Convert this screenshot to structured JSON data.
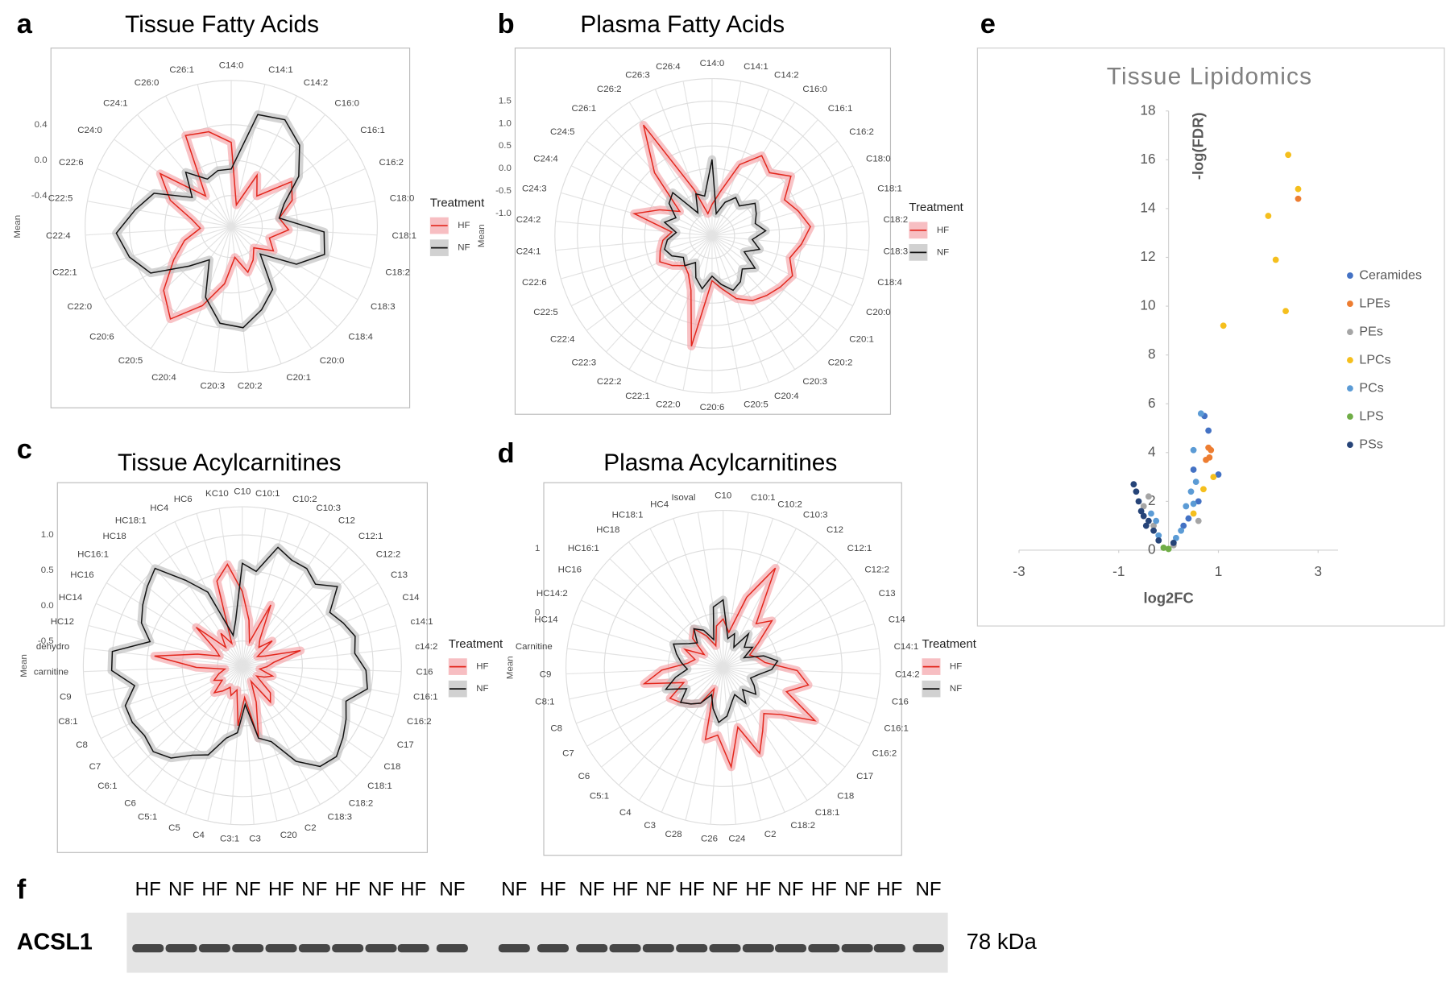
{
  "panel_labels": [
    "a",
    "b",
    "c",
    "d",
    "e",
    "f"
  ],
  "chart_data": [
    {
      "type": "radar",
      "title": "Tissue Fatty Acids",
      "y_label": "Mean",
      "legend_title": "Treatment",
      "categories": [
        "C14:0",
        "C14:1",
        "C14:2",
        "C16:0",
        "C16:1",
        "C16:2",
        "C18:0",
        "C18:1",
        "C18:2",
        "C18:3",
        "C18:4",
        "C20:0",
        "C20:1",
        "C20:2",
        "C20:3",
        "C20:4",
        "C20:5",
        "C20:6",
        "C22:0",
        "C22:1",
        "C22:4",
        "C22:5",
        "C22:6",
        "C24:0",
        "C24:1",
        "C26:0",
        "C26:1"
      ],
      "series": [
        {
          "name": "HF",
          "color": "#e3261c",
          "ribbon_color": "#f4a3a8",
          "values": [
            0.2,
            -0.5,
            -0.1,
            -0.3,
            0.1,
            0.0,
            -0.2,
            -0.1,
            -0.3,
            -0.2,
            -0.4,
            -0.3,
            -0.2,
            -0.4,
            -0.1,
            0.2,
            0.5,
            0.3,
            0.0,
            -0.2,
            -0.4,
            -0.3,
            0.0,
            0.25,
            -0.3,
            0.4,
            0.35
          ]
        },
        {
          "name": "NF",
          "color": "#111111",
          "ribbon_color": "#bdbdbd",
          "values": [
            -0.1,
            0.55,
            0.6,
            0.45,
            0.2,
            -0.1,
            -0.2,
            0.3,
            0.35,
            0.1,
            -0.3,
            0.1,
            0.25,
            0.4,
            0.35,
            0.1,
            -0.3,
            -0.1,
            0.3,
            0.45,
            0.55,
            0.35,
            0.2,
            -0.2,
            0.05,
            -0.15,
            -0.1
          ]
        }
      ],
      "ylim": [
        -0.75,
        0.9
      ],
      "yticks": [
        0.4,
        {
          "value": 0,
          "label": "0.0"
        },
        -0.4
      ],
      "grid": true
    },
    {
      "type": "radar",
      "title": "Plasma Fatty Acids",
      "y_label": "Mean",
      "legend_title": "Treatment",
      "categories": [
        "C14:0",
        "C14:1",
        "C14:2",
        "C16:0",
        "C16:1",
        "C16:2",
        "C18:0",
        "C18:1",
        "C18:2",
        "C18:3",
        "C18:4",
        "C20:0",
        "C20:1",
        "C20:2",
        "C20:3",
        "C20:4",
        "C20:5",
        "C20:6",
        "C22:0",
        "C22:1",
        "C22:2",
        "C22:3",
        "C22:4",
        "C22:5",
        "C22:6",
        "C24:1",
        "C24:2",
        "C24:3",
        "C24:4",
        "C24:5",
        "C26:1",
        "C26:2",
        "C26:3",
        "C26:4"
      ],
      "series": [
        {
          "name": "HF",
          "color": "#e3261c",
          "ribbon_color": "#f4a3a8",
          "values": [
            -0.8,
            -0.5,
            0.2,
            0.6,
            0.4,
            0.7,
            0.3,
            0.5,
            0.7,
            0.5,
            0.3,
            0.5,
            0.4,
            0.3,
            0.2,
            0.0,
            -0.3,
            -0.5,
            1.0,
            -0.2,
            -0.5,
            -0.6,
            -0.4,
            -0.2,
            -0.3,
            -0.4,
            -0.6,
            0.3,
            -0.2,
            -0.6,
            0.4,
            1.4,
            -0.4,
            -1.0
          ]
        },
        {
          "name": "NF",
          "color": "#111111",
          "ribbon_color": "#bdbdbd",
          "values": [
            0.2,
            -1.0,
            -0.7,
            -0.5,
            -0.6,
            -0.3,
            -0.4,
            -0.5,
            -0.3,
            -0.6,
            -0.4,
            -0.7,
            -0.3,
            -0.5,
            -0.3,
            -0.2,
            -0.4,
            -0.6,
            -0.3,
            -0.5,
            -0.8,
            -0.6,
            -0.7,
            -0.5,
            -0.4,
            -0.5,
            -0.7,
            -0.4,
            -0.6,
            -0.3,
            -0.2,
            -0.9,
            -0.5,
            -0.6
          ]
        }
      ],
      "ylim": [
        -1.5,
        2.0
      ],
      "yticks": [
        1.5,
        {
          "value": 1,
          "label": "1.0"
        },
        0.5,
        {
          "value": 0,
          "label": "0.0"
        },
        -0.5,
        {
          "value": -1,
          "label": "-1.0"
        }
      ],
      "grid": true
    },
    {
      "type": "radar",
      "title": "Tissue Acylcarnitines",
      "y_label": "Mean",
      "legend_title": "Treatment",
      "categories": [
        "C10",
        "C10:1",
        "C10:2",
        "C10:3",
        "C12",
        "C12:1",
        "C12:2",
        "C13",
        "C14",
        "c14:1",
        "c14:2",
        "C16",
        "C16:1",
        "C16:2",
        "C17",
        "C18",
        "C18:1",
        "C18:2",
        "C18:3",
        "C2",
        "C20",
        "C3",
        "C3:1",
        "C4",
        "C5",
        "C5:1",
        "C6",
        "C6:1",
        "C7",
        "C8",
        "C8:1",
        "C9",
        "carnitine",
        "dehydro",
        "HC12",
        "HC14",
        "HC16",
        "HC16:1",
        "HC18",
        "HC18:1",
        "HC4",
        "HC6",
        "KC10"
      ],
      "series": [
        {
          "name": "HF",
          "color": "#e3261c",
          "ribbon_color": "#f4a3a8",
          "values": [
            0.2,
            -0.2,
            -0.5,
            0.1,
            -0.4,
            -0.5,
            -0.3,
            -0.6,
            -0.5,
            0.0,
            -0.4,
            -0.5,
            -0.6,
            -0.4,
            -0.5,
            -0.6,
            -0.3,
            -0.2,
            -0.6,
            -0.3,
            0.2,
            -0.4,
            0.0,
            -0.5,
            -0.4,
            -0.5,
            -0.4,
            -0.3,
            -0.5,
            -0.4,
            -0.5,
            -0.6,
            -0.2,
            0.4,
            -0.2,
            -0.5,
            -0.4,
            0.0,
            -0.5,
            -0.3,
            -0.5,
            0.4,
            0.6
          ]
        },
        {
          "name": "NF",
          "color": "#111111",
          "ribbon_color": "#bdbdbd",
          "values": [
            0.6,
            0.5,
            0.9,
            0.8,
            0.8,
            0.7,
            0.9,
            0.6,
            0.7,
            0.8,
            0.75,
            0.9,
            0.95,
            0.7,
            0.8,
            0.9,
            1.0,
            0.95,
            0.7,
            0.3,
            0.2,
            -0.3,
            0.1,
            0.2,
            0.5,
            0.6,
            0.8,
            0.9,
            0.85,
            0.9,
            0.9,
            0.7,
            1.0,
            1.0,
            0.5,
            0.7,
            0.8,
            0.9,
            1.0,
            0.6,
            0.3,
            -0.4,
            -0.2
          ]
        }
      ],
      "ylim": [
        -0.85,
        1.4
      ],
      "yticks": [
        {
          "value": 1,
          "label": "1.0"
        },
        0.5,
        {
          "value": 0,
          "label": "0.0"
        },
        -0.5
      ],
      "grid": true
    },
    {
      "type": "radar",
      "title": "Plasma Acylcarnitines",
      "y_label": "Mean",
      "legend_title": "Treatment",
      "categories": [
        "C10",
        "C10:1",
        "C10:2",
        "C10:3",
        "C12",
        "C12:1",
        "C12:2",
        "C13",
        "C14",
        "C14:1",
        "C14:2",
        "C16",
        "C16:1",
        "C16:2",
        "C17",
        "C18",
        "C18:1",
        "C18:2",
        "C2",
        "C24",
        "C26",
        "C28",
        "C3",
        "C4",
        "C5:1",
        "C6",
        "C7",
        "C8",
        "C8:1",
        "C9",
        "Carnitine",
        "HC14",
        "HC14:2",
        "HC16",
        "HC16:1",
        "HC18",
        "HC18:1",
        "HC4",
        "Isoval"
      ],
      "series": [
        {
          "name": "HF",
          "color": "#e3261c",
          "ribbon_color": "#f4a3a8",
          "values": [
            -0.1,
            -0.3,
            0.3,
            0.9,
            0.0,
            0.2,
            -0.2,
            -0.4,
            -0.3,
            -0.2,
            0.3,
            0.5,
            0.2,
            0.8,
            0.3,
            0.1,
            0.3,
            0.6,
            0.1,
            0.7,
            0.2,
            0.3,
            -0.5,
            -0.2,
            -0.1,
            0.0,
            0.1,
            -0.2,
            0.4,
            0.1,
            -0.3,
            -0.4,
            -0.2,
            -0.5,
            -0.2,
            -0.1,
            -0.3,
            -0.5,
            -0.2
          ]
        },
        {
          "name": "NF",
          "color": "#111111",
          "ribbon_color": "#bdbdbd",
          "values": [
            0.2,
            -0.4,
            -0.3,
            -0.5,
            -0.2,
            -0.4,
            -0.3,
            -0.5,
            -0.2,
            0.0,
            -0.1,
            -0.3,
            -0.4,
            -0.3,
            -0.2,
            -0.4,
            -0.2,
            -0.4,
            -0.3,
            -0.1,
            0.0,
            -0.2,
            -0.4,
            -0.2,
            -0.1,
            0.0,
            -0.2,
            0.1,
            -0.1,
            -0.3,
            -0.2,
            -0.1,
            0.0,
            -0.2,
            -0.3,
            -0.1,
            -0.2,
            -0.4,
            0.1
          ]
        }
      ],
      "ylim": [
        -0.86,
        1.6
      ],
      "yticks": [
        1,
        0
      ],
      "grid": true
    },
    {
      "type": "scatter",
      "title": "Tissue Lipidomics",
      "x_label": "log2FC",
      "y_label": "-log(FDR)",
      "series": [
        {
          "name": "Ceramides",
          "color": "#4472c4",
          "x": [
            0.8,
            0.72,
            1.0,
            0.5,
            0.6,
            0.3,
            0.4
          ],
          "values": [
            4.9,
            5.5,
            3.1,
            3.3,
            2.0,
            1.0,
            1.3
          ]
        },
        {
          "name": "LPEs",
          "color": "#ed7d31",
          "x": [
            2.6,
            0.8,
            0.75,
            0.85,
            0.82
          ],
          "values": [
            14.4,
            4.2,
            3.7,
            4.1,
            3.8
          ]
        },
        {
          "name": "PEs",
          "color": "#a5a5a5",
          "x": [
            -0.4,
            -0.5,
            0.6,
            -0.3,
            0.1
          ],
          "values": [
            2.2,
            1.8,
            1.2,
            1.0,
            0.2
          ]
        },
        {
          "name": "LPCs",
          "color": "#f5bf1d",
          "x": [
            2.4,
            2.6,
            2.0,
            2.15,
            2.35,
            1.1,
            0.7,
            0.5,
            0.9
          ],
          "values": [
            16.2,
            14.8,
            13.7,
            11.9,
            9.8,
            9.2,
            2.5,
            1.5,
            3.0
          ]
        },
        {
          "name": "PCs",
          "color": "#5b9bd5",
          "x": [
            0.5,
            0.65,
            0.55,
            0.45,
            0.35,
            -0.25,
            0.25,
            0.15,
            -0.35,
            0.5,
            -0.2
          ],
          "values": [
            4.1,
            5.6,
            2.8,
            2.4,
            1.8,
            1.2,
            0.8,
            0.5,
            1.5,
            1.9,
            0.6
          ]
        },
        {
          "name": "LPS",
          "color": "#70ad47",
          "x": [
            -0.1,
            0.0
          ],
          "values": [
            0.1,
            0.05
          ]
        },
        {
          "name": "PSs",
          "color": "#264478",
          "x": [
            -0.7,
            -0.6,
            -0.55,
            -0.65,
            -0.4,
            -0.3,
            -0.45,
            -0.2,
            0.1,
            -0.5
          ],
          "values": [
            2.7,
            2.0,
            1.6,
            2.4,
            1.2,
            0.8,
            1.0,
            0.4,
            0.3,
            1.4
          ]
        }
      ],
      "xlim": [
        -3,
        3.4
      ],
      "xticks": [
        -3,
        -1,
        1,
        3
      ],
      "ylim": [
        0,
        18
      ],
      "yticks": [
        0,
        2,
        4,
        6,
        8,
        10,
        12,
        14,
        16,
        18
      ],
      "legend": "right"
    }
  ],
  "blot": {
    "lanes": [
      "HF",
      "NF",
      "HF",
      "NF",
      "HF",
      "NF",
      "HF",
      "NF",
      "HF",
      "NF",
      "NF",
      "HF",
      "NF",
      "HF",
      "NF",
      "HF",
      "NF",
      "HF",
      "NF",
      "HF",
      "NF",
      "HF",
      "NF"
    ],
    "protein": "ACSL1",
    "size": "78 kDa"
  }
}
